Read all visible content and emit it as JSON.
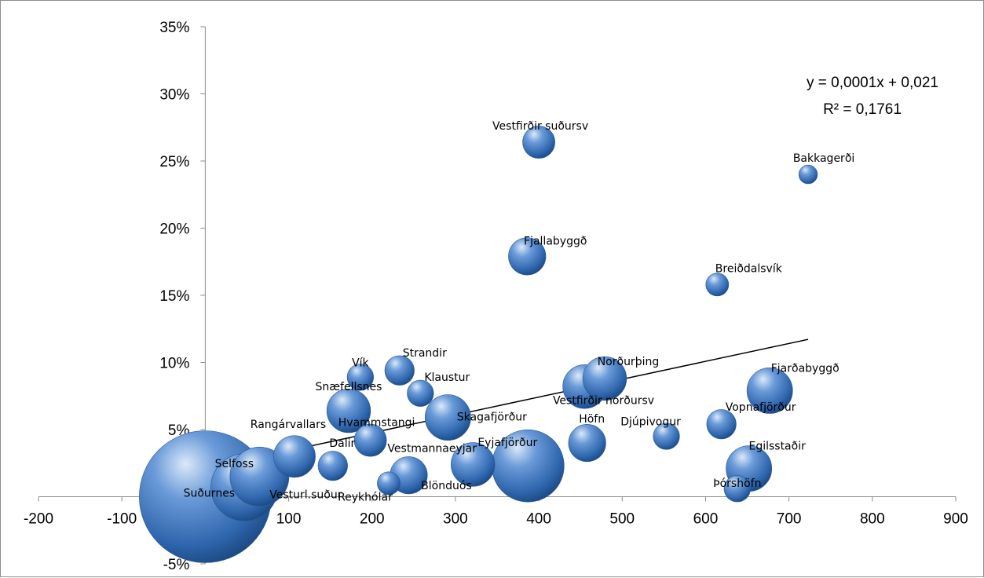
{
  "chart_data": {
    "type": "scatter",
    "subtype": "bubble",
    "title": "",
    "xlabel": "",
    "ylabel": "",
    "xlim": [
      -200,
      900
    ],
    "ylim": [
      -0.05,
      0.35
    ],
    "x_ticks": [
      -200,
      -100,
      0,
      100,
      200,
      300,
      400,
      500,
      600,
      700,
      800,
      900
    ],
    "y_ticks": [
      -0.05,
      0,
      0.05,
      0.1,
      0.15,
      0.2,
      0.25,
      0.3,
      0.35
    ],
    "x_tick_labels": [
      "-200",
      "-100",
      "0",
      "100",
      "200",
      "300",
      "400",
      "500",
      "600",
      "700",
      "800",
      "900"
    ],
    "y_tick_labels": [
      "-5%",
      "0%",
      "5%",
      "10%",
      "15%",
      "20%",
      "25%",
      "30%",
      "35%"
    ],
    "grid": false,
    "legend": false,
    "bubble_color": "#3f78bd",
    "trendline": {
      "equation": "y = 0,0001x + 0,021",
      "r_squared": "R² = 0,1761",
      "x_range": [
        0,
        723
      ],
      "slope": 0.000133,
      "intercept": 0.021
    },
    "points": [
      {
        "label": "Suðurnes",
        "x": 0,
        "y": 0.0,
        "size": 100
      },
      {
        "label": "Selfoss",
        "x": 65,
        "y": 0.015,
        "size": 20
      },
      {
        "label": "Vesturl.suður",
        "x": 47,
        "y": 0.007,
        "size": 26
      },
      {
        "label": "Rangárvallars",
        "x": 107,
        "y": 0.03,
        "size": 10
      },
      {
        "label": "Dalir",
        "x": 153,
        "y": 0.023,
        "size": 5
      },
      {
        "label": "Hvammstangi",
        "x": 198,
        "y": 0.042,
        "size": 6
      },
      {
        "label": "Snæfellsnes",
        "x": 172,
        "y": 0.064,
        "size": 11
      },
      {
        "label": "Vík",
        "x": 186,
        "y": 0.089,
        "size": 4
      },
      {
        "label": "Strandir",
        "x": 233,
        "y": 0.094,
        "size": 5
      },
      {
        "label": "Klaustur",
        "x": 258,
        "y": 0.077,
        "size": 4
      },
      {
        "label": "Reykhólar",
        "x": 220,
        "y": 0.01,
        "size": 3
      },
      {
        "label": "Blönduós",
        "x": 244,
        "y": 0.016,
        "size": 8
      },
      {
        "label": "Vestmannaeyjar",
        "x": 321,
        "y": 0.024,
        "size": 11
      },
      {
        "label": "Skagafjörður",
        "x": 291,
        "y": 0.059,
        "size": 12
      },
      {
        "label": "Eyjafjörður",
        "x": 387,
        "y": 0.023,
        "size": 30
      },
      {
        "label": "Fjallabyggð",
        "x": 386,
        "y": 0.179,
        "size": 8
      },
      {
        "label": "Vestfirðir suðursv",
        "x": 400,
        "y": 0.264,
        "size": 6
      },
      {
        "label": "Vestfirðir norðursv",
        "x": 455,
        "y": 0.082,
        "size": 11
      },
      {
        "label": "Norðurþing",
        "x": 479,
        "y": 0.088,
        "size": 11
      },
      {
        "label": "Höfn",
        "x": 458,
        "y": 0.04,
        "size": 8
      },
      {
        "label": "Djúpivogur",
        "x": 553,
        "y": 0.045,
        "size": 4
      },
      {
        "label": "Breiðdalsvík",
        "x": 614,
        "y": 0.158,
        "size": 3
      },
      {
        "label": "Bakkagerði",
        "x": 723,
        "y": 0.24,
        "size": 2
      },
      {
        "label": "Vopnafjörður",
        "x": 619,
        "y": 0.054,
        "size": 5
      },
      {
        "label": "Fjarðabyggð",
        "x": 677,
        "y": 0.079,
        "size": 12
      },
      {
        "label": "Egilsstaðir",
        "x": 652,
        "y": 0.021,
        "size": 12
      },
      {
        "label": "Þórshöfn",
        "x": 638,
        "y": 0.006,
        "size": 4
      }
    ]
  }
}
